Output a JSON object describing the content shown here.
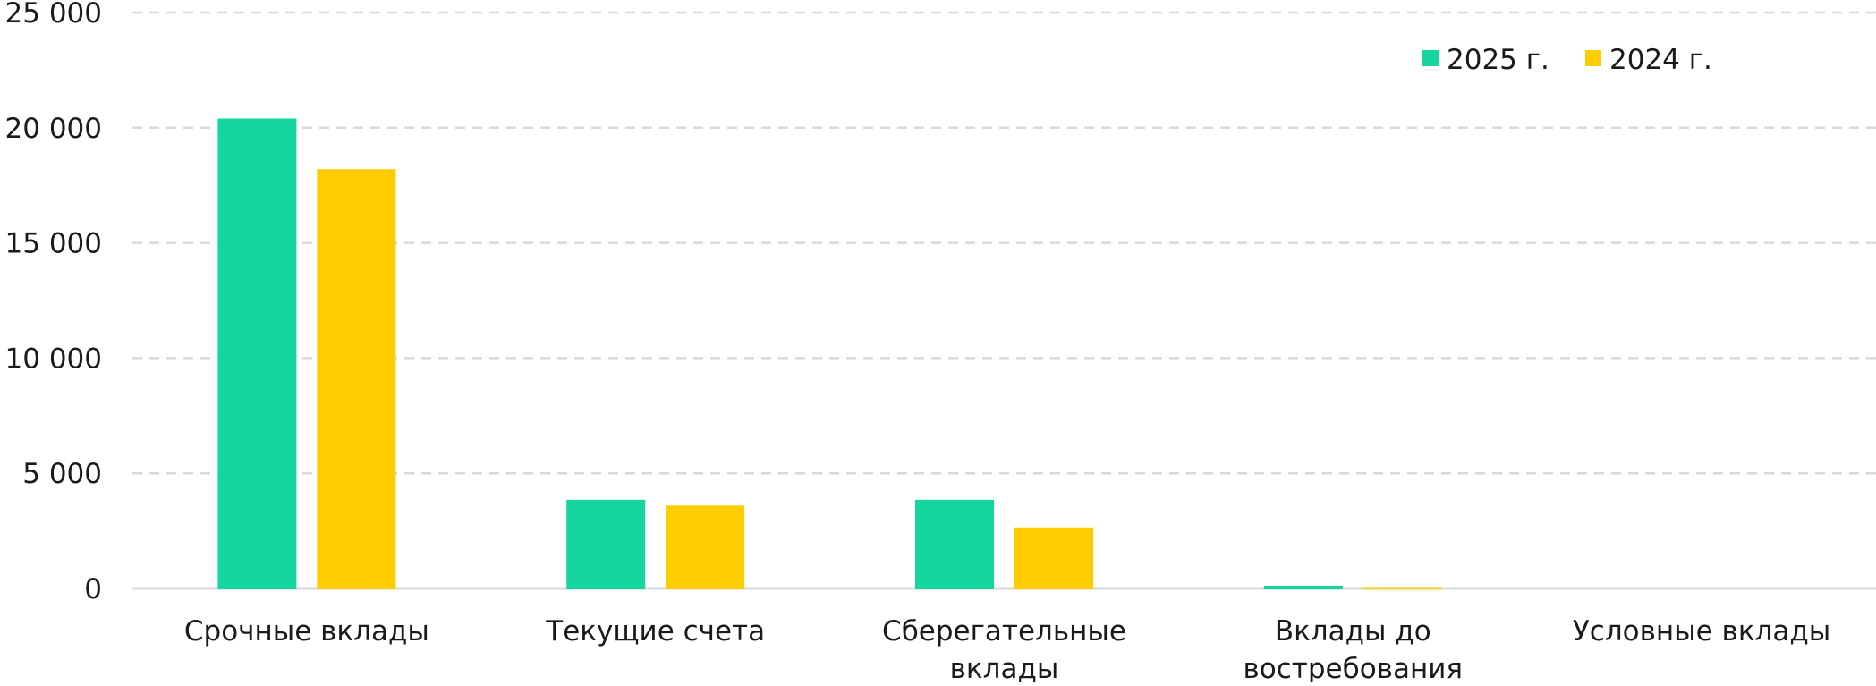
{
  "chart_data": {
    "type": "bar",
    "categories": [
      [
        "Срочные вклады"
      ],
      [
        "Текущие счета"
      ],
      [
        "Сберегательные",
        "вклады"
      ],
      [
        "Вклады до",
        "востребования"
      ],
      [
        "Условные вклады"
      ]
    ],
    "series": [
      {
        "name": "2025 г.",
        "color": "#16D6A0",
        "values": [
          20400,
          3850,
          3850,
          120,
          0
        ]
      },
      {
        "name": "2024 г.",
        "color": "#FFCC00",
        "values": [
          18200,
          3600,
          2650,
          60,
          0
        ]
      }
    ],
    "yticks": [
      "0",
      "5 000",
      "10 000",
      "15 000",
      "20 000",
      "25 000"
    ],
    "ylim": [
      0,
      25000
    ],
    "grid": true,
    "legend_position": "top-right",
    "title": "",
    "xlabel": "",
    "ylabel": ""
  }
}
